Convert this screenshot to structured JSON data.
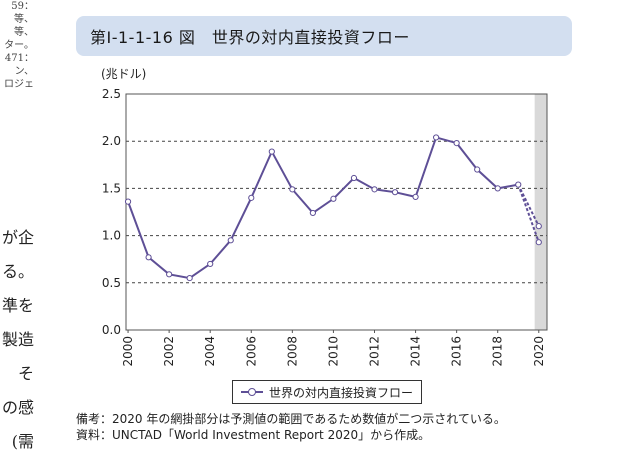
{
  "left_fragments": {
    "small": [
      "59：",
      "等、",
      "等、",
      "ター。",
      "471：",
      "ン、",
      "ロジェ"
    ],
    "big": [
      "が企",
      "る。",
      "準を",
      "製造",
      "そ",
      "の感",
      "(需"
    ]
  },
  "figure": {
    "title": "第Ⅰ-1-1-16 図　世界の対内直接投資フロー",
    "note": "備考：2020 年の網掛部分は予測値の範囲であるため数値が二つ示されている。",
    "source": "資料：UNCTAD「World Investment Report 2020」から作成。"
  },
  "colors": {
    "line": "#5e4f96",
    "band": "#d9d9d9",
    "title_bg": "#d3dff0"
  },
  "chart_data": {
    "type": "line",
    "unit_label": "(兆ドル)",
    "ylim": [
      0,
      2.5
    ],
    "y_ticks": [
      "0.0",
      "0.5",
      "1.0",
      "1.5",
      "2.0",
      "2.5"
    ],
    "x_ticks": [
      "2000",
      "2002",
      "2004",
      "2006",
      "2008",
      "2010",
      "2012",
      "2014",
      "2016",
      "2018",
      "2020"
    ],
    "grid": "dashed horizontal",
    "series": [
      {
        "name": "世界の対内直接投資フロー",
        "x": [
          2000,
          2001,
          2002,
          2003,
          2004,
          2005,
          2006,
          2007,
          2008,
          2009,
          2010,
          2011,
          2012,
          2013,
          2014,
          2015,
          2016,
          2017,
          2018,
          2019
        ],
        "y": [
          1.36,
          0.77,
          0.59,
          0.55,
          0.7,
          0.95,
          1.4,
          1.89,
          1.49,
          1.24,
          1.39,
          1.61,
          1.49,
          1.46,
          1.41,
          2.04,
          1.98,
          1.7,
          1.5,
          1.54
        ]
      }
    ],
    "forecast": {
      "x": 2020,
      "high": 1.1,
      "low": 0.93,
      "style": "dashed, shaded band"
    },
    "legend": "bottom-center"
  }
}
